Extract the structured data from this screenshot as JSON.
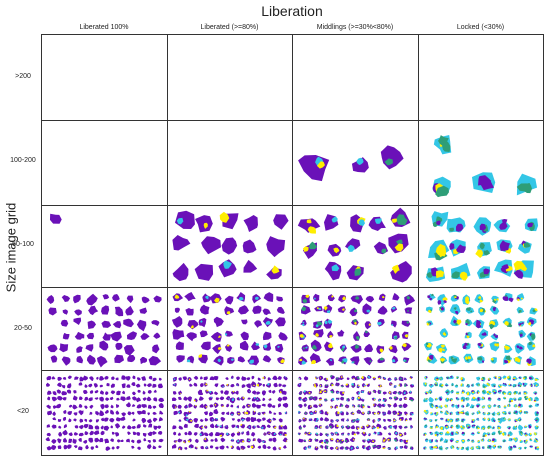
{
  "title": "Liberation",
  "y_axis_label": "Size image grid",
  "columns": [
    "Liberated 100%",
    "Liberated (>=80%)",
    "Middlings (>=30%<80%)",
    "Locked (<30%)"
  ],
  "rows": [
    ">200",
    "100-200",
    "50-100",
    "20-50",
    "<20"
  ],
  "colors": {
    "main_mineral": "#6a11b8",
    "secondary_mineral": "#ffee00",
    "tertiary_mineral": "#33c6e6",
    "quaternary_mineral": "#2e9e77",
    "grid_border": "#333333",
    "background": "#ffffff"
  }
}
